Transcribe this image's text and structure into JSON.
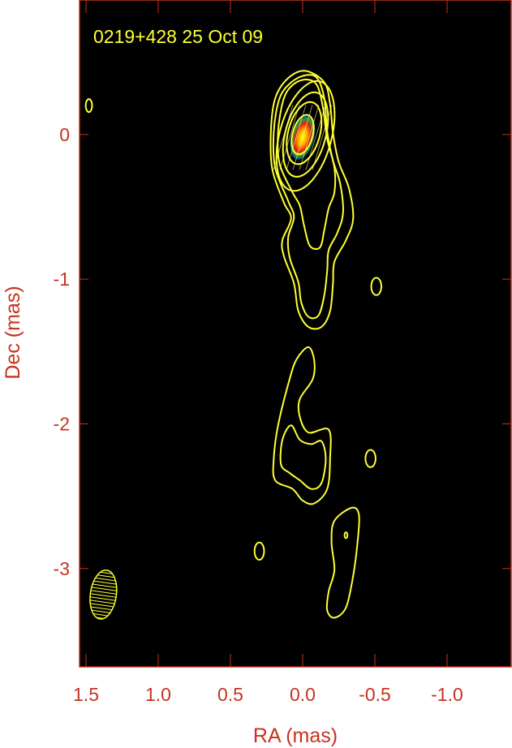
{
  "chart_data": {
    "type": "contour",
    "title": "0219+428 25 Oct 09",
    "xlabel": "RA (mas)",
    "ylabel": "Dec (mas)",
    "xlim": [
      1.545,
      -1.444
    ],
    "ylim": [
      -3.68,
      0.93
    ],
    "x_ticks": [
      1.5,
      1.0,
      0.5,
      0.0,
      -0.5,
      -1.0
    ],
    "x_tick_labels": [
      "1.5",
      "1.0",
      "0.5",
      "0.0",
      "-0.5",
      "-1.0"
    ],
    "y_ticks": [
      0,
      -1,
      -2,
      -3
    ],
    "y_tick_labels": [
      "0",
      "-1",
      "-2",
      "-3"
    ],
    "grid": false,
    "colors": {
      "background": "#000000",
      "contour": "#ffff33",
      "axis": "#c8321e",
      "title": "#ffff33"
    },
    "core_colormap": [
      "#ffff00",
      "#ff8c00",
      "#e02010",
      "#1fa040"
    ],
    "core": {
      "ra": 0.0,
      "dec": -0.02
    },
    "ellipse_contours": [
      {
        "ra": -0.02,
        "dec": -0.01,
        "a": 0.18,
        "b": 0.39,
        "pa": 15
      },
      {
        "ra": -0.02,
        "dec": 0.0,
        "a": 0.14,
        "b": 0.3,
        "pa": 15
      },
      {
        "ra": -0.01,
        "dec": 0.01,
        "a": 0.11,
        "b": 0.22,
        "pa": 15
      },
      {
        "ra": 0.0,
        "dec": 0.0,
        "a": 0.07,
        "b": 0.14,
        "pa": 15
      },
      {
        "ra": 1.48,
        "dec": 0.2,
        "a": 0.022,
        "b": 0.045,
        "pa": 0
      },
      {
        "ra": -0.51,
        "dec": -1.05,
        "a": 0.035,
        "b": 0.06,
        "pa": 0
      },
      {
        "ra": -0.47,
        "dec": -2.24,
        "a": 0.035,
        "b": 0.06,
        "pa": 0
      },
      {
        "ra": 0.3,
        "dec": -2.88,
        "a": 0.033,
        "b": 0.06,
        "pa": 0
      },
      {
        "ra": -0.3,
        "dec": -2.77,
        "a": 0.01,
        "b": 0.02,
        "pa": 0
      }
    ],
    "polygon_contours": [
      [
        [
          -0.02,
          0.44
        ],
        [
          -0.15,
          0.36
        ],
        [
          -0.19,
          0.21
        ],
        [
          -0.21,
          0.01
        ],
        [
          -0.25,
          -0.19
        ],
        [
          -0.32,
          -0.37
        ],
        [
          -0.35,
          -0.58
        ],
        [
          -0.3,
          -0.73
        ],
        [
          -0.22,
          -0.88
        ],
        [
          -0.21,
          -1.03
        ],
        [
          -0.19,
          -1.22
        ],
        [
          -0.13,
          -1.33
        ],
        [
          -0.04,
          -1.33
        ],
        [
          0.03,
          -1.22
        ],
        [
          0.06,
          -1.03
        ],
        [
          0.13,
          -0.84
        ],
        [
          0.14,
          -0.73
        ],
        [
          0.08,
          -0.58
        ],
        [
          0.13,
          -0.47
        ],
        [
          0.21,
          -0.24
        ],
        [
          0.22,
          0.02
        ],
        [
          0.19,
          0.25
        ],
        [
          0.1,
          0.39
        ]
      ],
      [
        [
          -0.02,
          0.41
        ],
        [
          -0.1,
          0.39
        ],
        [
          -0.15,
          0.25
        ],
        [
          -0.17,
          0.02
        ],
        [
          -0.21,
          -0.18
        ],
        [
          -0.26,
          -0.34
        ],
        [
          -0.28,
          -0.54
        ],
        [
          -0.24,
          -0.68
        ],
        [
          -0.18,
          -0.8
        ],
        [
          -0.17,
          -0.94
        ],
        [
          -0.15,
          -1.11
        ],
        [
          -0.11,
          -1.25
        ],
        [
          -0.04,
          -1.26
        ],
        [
          0.01,
          -1.16
        ],
        [
          0.03,
          -1.02
        ],
        [
          0.09,
          -0.85
        ],
        [
          0.1,
          -0.71
        ],
        [
          0.06,
          -0.57
        ],
        [
          0.1,
          -0.46
        ],
        [
          0.19,
          -0.23
        ],
        [
          0.2,
          0.02
        ],
        [
          0.16,
          0.25
        ],
        [
          0.08,
          0.36
        ]
      ],
      [
        [
          -0.03,
          0.38
        ],
        [
          -0.1,
          0.34
        ],
        [
          -0.14,
          0.19
        ],
        [
          -0.17,
          -0.03
        ],
        [
          -0.22,
          -0.23
        ],
        [
          -0.22,
          -0.4
        ],
        [
          -0.18,
          -0.51
        ],
        [
          -0.15,
          -0.66
        ],
        [
          -0.12,
          -0.78
        ],
        [
          -0.05,
          -0.77
        ],
        [
          -0.01,
          -0.63
        ],
        [
          0.02,
          -0.49
        ],
        [
          0.07,
          -0.4
        ],
        [
          0.16,
          -0.2
        ],
        [
          0.17,
          0.02
        ],
        [
          0.13,
          0.25
        ],
        [
          0.06,
          0.35
        ]
      ],
      [
        [
          -0.04,
          -1.47
        ],
        [
          -0.08,
          -1.56
        ],
        [
          -0.07,
          -1.69
        ],
        [
          0.02,
          -1.83
        ],
        [
          0.02,
          -1.95
        ],
        [
          -0.04,
          -2.06
        ],
        [
          -0.18,
          -2.04
        ],
        [
          -0.19,
          -2.24
        ],
        [
          -0.17,
          -2.45
        ],
        [
          -0.08,
          -2.55
        ],
        [
          0,
          -2.53
        ],
        [
          0.07,
          -2.45
        ],
        [
          0.19,
          -2.39
        ],
        [
          0.2,
          -2.24
        ],
        [
          0.17,
          -2.01
        ],
        [
          0.09,
          -1.69
        ],
        [
          0.04,
          -1.55
        ]
      ],
      [
        [
          0.08,
          -2.01
        ],
        [
          0.02,
          -2.11
        ],
        [
          -0.06,
          -2.14
        ],
        [
          -0.13,
          -2.12
        ],
        [
          -0.16,
          -2.24
        ],
        [
          -0.13,
          -2.41
        ],
        [
          -0.06,
          -2.45
        ],
        [
          0.02,
          -2.39
        ],
        [
          0.09,
          -2.34
        ],
        [
          0.15,
          -2.28
        ],
        [
          0.14,
          -2.11
        ]
      ],
      [
        [
          -0.34,
          -2.58
        ],
        [
          -0.39,
          -2.63
        ],
        [
          -0.38,
          -2.82
        ],
        [
          -0.35,
          -3.05
        ],
        [
          -0.3,
          -3.27
        ],
        [
          -0.22,
          -3.34
        ],
        [
          -0.17,
          -3.29
        ],
        [
          -0.18,
          -3.16
        ],
        [
          -0.22,
          -3.01
        ],
        [
          -0.2,
          -2.82
        ],
        [
          -0.22,
          -2.67
        ]
      ]
    ],
    "beam": {
      "ra": 1.38,
      "dec": -3.18,
      "a": 0.09,
      "b": 0.17,
      "pa": 8
    }
  }
}
